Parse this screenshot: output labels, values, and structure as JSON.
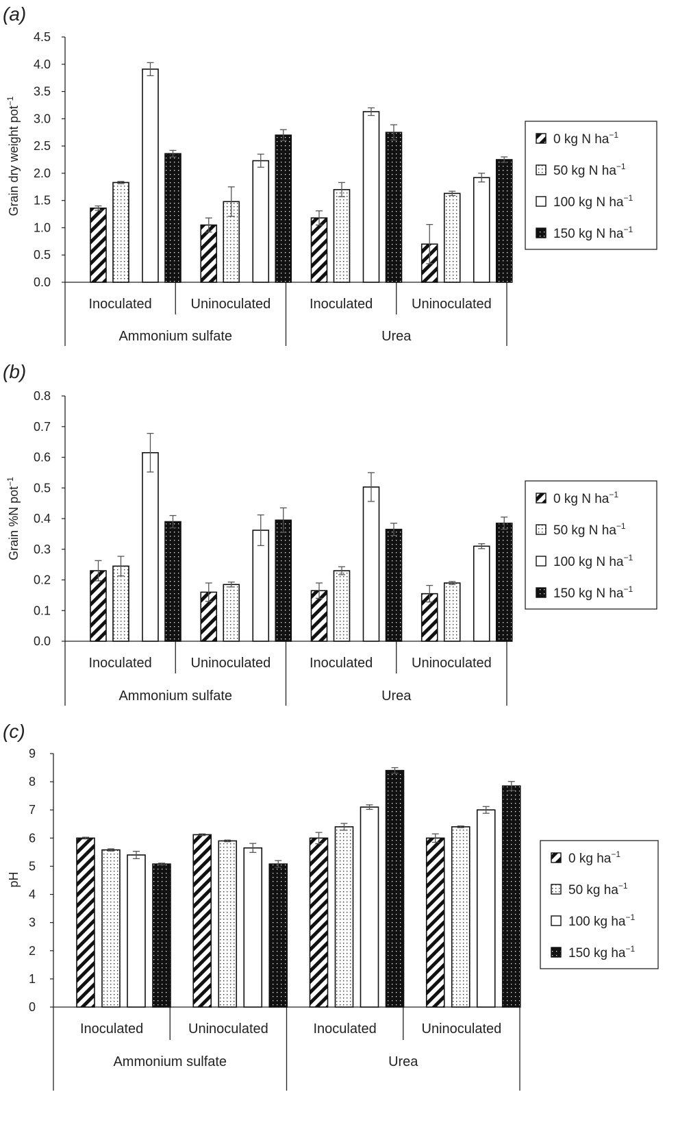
{
  "figure": {
    "panels": [
      {
        "label": "(a)",
        "ylabel": "Grain dry weight pot",
        "ylabel_sup": "−1",
        "ylabel_color": "#333333",
        "ylim": [
          0,
          4.5
        ],
        "yticks": [
          "0.0",
          "0.5",
          "1.0",
          "1.5",
          "2.0",
          "2.5",
          "3.0",
          "3.5",
          "4.0",
          "4.5"
        ],
        "legend_items": [
          {
            "text": "0 kg N ha",
            "sup": "−1"
          },
          {
            "text": "50 kg N ha",
            "sup": "−1"
          },
          {
            "text": "100 kg N ha",
            "sup": "−1"
          },
          {
            "text": "150 kg N ha",
            "sup": "−1"
          }
        ]
      },
      {
        "label": "(b)",
        "ylabel": "Grain %N pot",
        "ylabel_sup": "−1",
        "ylabel_color": "#333333",
        "ylim": [
          0,
          0.8
        ],
        "yticks": [
          "0.0",
          "0.1",
          "0.2",
          "0.3",
          "0.4",
          "0.5",
          "0.6",
          "0.7",
          "0.8"
        ],
        "legend_items": [
          {
            "text": "0 kg N ha",
            "sup": "−1"
          },
          {
            "text": "50 kg N ha",
            "sup": "−1"
          },
          {
            "text": "100 kg N ha",
            "sup": "−1"
          },
          {
            "text": "150 kg N ha",
            "sup": "−1"
          }
        ]
      },
      {
        "label": "(c)",
        "ylabel": "pH",
        "ylabel_sup": "",
        "ylabel_color": "#8a8a8a",
        "ylim": [
          0,
          9
        ],
        "yticks": [
          "0",
          "1",
          "2",
          "3",
          "4",
          "5",
          "6",
          "7",
          "8",
          "9"
        ],
        "legend_items": [
          {
            "text": "0 kg ha",
            "sup": "−1"
          },
          {
            "text": "50 kg ha",
            "sup": "−1"
          },
          {
            "text": "100 kg ha",
            "sup": "−1"
          },
          {
            "text": "150 kg ha",
            "sup": "−1"
          }
        ]
      }
    ],
    "colors": {
      "bar_fill": "#ffffff",
      "bar_stroke": "#111111",
      "dark_fill": "#111111",
      "axis": "#222222",
      "error_bar": "#555555"
    }
  },
  "chart_data": [
    {
      "type": "bar",
      "title": "(a)",
      "ylabel": "Grain dry weight pot−1",
      "ylim": [
        0,
        4.5
      ],
      "categories": [
        {
          "group": "Ammonium sulfate",
          "sub": "Inoculated"
        },
        {
          "group": "Ammonium sulfate",
          "sub": "Uninoculated"
        },
        {
          "group": "Urea",
          "sub": "Inoculated"
        },
        {
          "group": "Urea",
          "sub": "Uninoculated"
        }
      ],
      "series": [
        {
          "name": "0 kg N ha−1",
          "pattern": "diagonal",
          "values": [
            1.36,
            1.05,
            1.18,
            0.7
          ],
          "errors": [
            0.04,
            0.13,
            0.13,
            0.36
          ]
        },
        {
          "name": "50 kg N ha−1",
          "pattern": "dots",
          "values": [
            1.83,
            1.48,
            1.7,
            1.63
          ],
          "errors": [
            0.02,
            0.27,
            0.13,
            0.04
          ]
        },
        {
          "name": "100 kg N ha−1",
          "pattern": "white",
          "values": [
            3.91,
            2.23,
            3.13,
            1.92
          ],
          "errors": [
            0.12,
            0.12,
            0.07,
            0.08
          ]
        },
        {
          "name": "150 kg N ha−1",
          "pattern": "dark",
          "values": [
            2.36,
            2.7,
            2.75,
            2.25
          ],
          "errors": [
            0.06,
            0.1,
            0.14,
            0.05
          ]
        }
      ]
    },
    {
      "type": "bar",
      "title": "(b)",
      "ylabel": "Grain %N pot−1",
      "ylim": [
        0,
        0.8
      ],
      "categories": [
        {
          "group": "Ammonium sulfate",
          "sub": "Inoculated"
        },
        {
          "group": "Ammonium sulfate",
          "sub": "Uninoculated"
        },
        {
          "group": "Urea",
          "sub": "Inoculated"
        },
        {
          "group": "Urea",
          "sub": "Uninoculated"
        }
      ],
      "series": [
        {
          "name": "0 kg N ha−1",
          "pattern": "diagonal",
          "values": [
            0.23,
            0.16,
            0.165,
            0.155
          ],
          "errors": [
            0.033,
            0.03,
            0.025,
            0.027
          ]
        },
        {
          "name": "50 kg N ha−1",
          "pattern": "dots",
          "values": [
            0.245,
            0.185,
            0.23,
            0.19
          ],
          "errors": [
            0.032,
            0.008,
            0.013,
            0.005
          ]
        },
        {
          "name": "100 kg N ha−1",
          "pattern": "white",
          "values": [
            0.615,
            0.362,
            0.503,
            0.31
          ],
          "errors": [
            0.063,
            0.05,
            0.047,
            0.008
          ]
        },
        {
          "name": "150 kg N ha−1",
          "pattern": "dark",
          "values": [
            0.39,
            0.395,
            0.365,
            0.385
          ],
          "errors": [
            0.02,
            0.04,
            0.02,
            0.02
          ]
        }
      ]
    },
    {
      "type": "bar",
      "title": "(c)",
      "ylabel": "pH",
      "ylim": [
        0,
        9
      ],
      "categories": [
        {
          "group": "Ammonium sulfate",
          "sub": "Inoculated"
        },
        {
          "group": "Ammonium sulfate",
          "sub": "Uninoculated"
        },
        {
          "group": "Urea",
          "sub": "Inoculated"
        },
        {
          "group": "Urea",
          "sub": "Uninoculated"
        }
      ],
      "series": [
        {
          "name": "0 kg ha−1",
          "pattern": "diagonal",
          "values": [
            6.0,
            6.12,
            6.0,
            6.0
          ],
          "errors": [
            0.03,
            0.03,
            0.2,
            0.15
          ]
        },
        {
          "name": "50 kg ha−1",
          "pattern": "dots",
          "values": [
            5.58,
            5.9,
            6.4,
            6.4
          ],
          "errors": [
            0.04,
            0.03,
            0.12,
            0.03
          ]
        },
        {
          "name": "100 kg ha−1",
          "pattern": "white",
          "values": [
            5.4,
            5.65,
            7.1,
            7.0
          ],
          "errors": [
            0.13,
            0.16,
            0.08,
            0.12
          ]
        },
        {
          "name": "150 kg ha−1",
          "pattern": "dark",
          "values": [
            5.08,
            5.08,
            8.4,
            7.85
          ],
          "errors": [
            0.03,
            0.12,
            0.1,
            0.16
          ]
        }
      ]
    }
  ]
}
